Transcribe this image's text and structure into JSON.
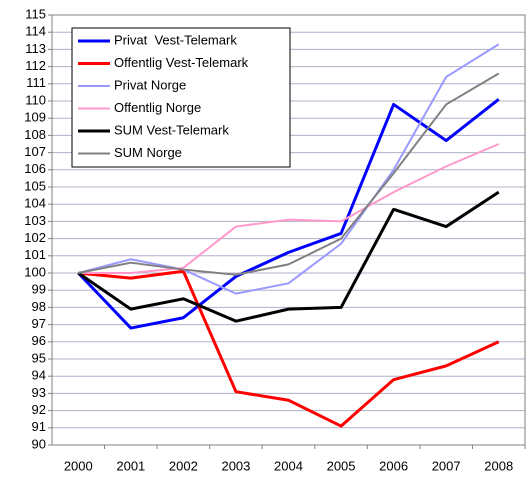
{
  "chart_data": {
    "type": "line",
    "categories": [
      "2000",
      "2001",
      "2002",
      "2003",
      "2004",
      "2005",
      "2006",
      "2007",
      "2008"
    ],
    "series": [
      {
        "name": "Privat  Vest-Telemark",
        "color": "#0000ff",
        "width": 3,
        "values": [
          100,
          96.8,
          97.4,
          99.8,
          101.2,
          102.3,
          109.8,
          107.7,
          110.1
        ]
      },
      {
        "name": "Offentlig Vest-Telemark",
        "color": "#ff0000",
        "width": 3,
        "values": [
          100,
          99.7,
          100.1,
          93.1,
          92.6,
          91.1,
          93.8,
          94.6,
          96.0
        ]
      },
      {
        "name": "Privat Norge",
        "color": "#9999ff",
        "width": 2,
        "values": [
          100,
          100.8,
          100.2,
          98.8,
          99.4,
          101.7,
          106.0,
          111.4,
          113.3
        ]
      },
      {
        "name": "Offentlig Norge",
        "color": "#ff99cc",
        "width": 2,
        "values": [
          100,
          100.0,
          100.3,
          102.7,
          103.1,
          103.0,
          104.7,
          106.2,
          107.5
        ]
      },
      {
        "name": "SUM Vest-Telemark",
        "color": "#000000",
        "width": 3,
        "values": [
          100,
          97.9,
          98.5,
          97.2,
          97.9,
          98.0,
          103.7,
          102.7,
          104.7
        ]
      },
      {
        "name": "SUM Norge",
        "color": "#808080",
        "width": 2,
        "values": [
          100,
          100.6,
          100.2,
          99.9,
          100.5,
          102.0,
          105.8,
          109.8,
          111.6
        ]
      }
    ],
    "ylim": [
      90,
      115
    ],
    "yticks": [
      90,
      91,
      92,
      93,
      94,
      95,
      96,
      97,
      98,
      99,
      100,
      101,
      102,
      103,
      104,
      105,
      106,
      107,
      108,
      109,
      110,
      111,
      112,
      113,
      114,
      115
    ],
    "grid": true,
    "legend": "upper-left"
  }
}
